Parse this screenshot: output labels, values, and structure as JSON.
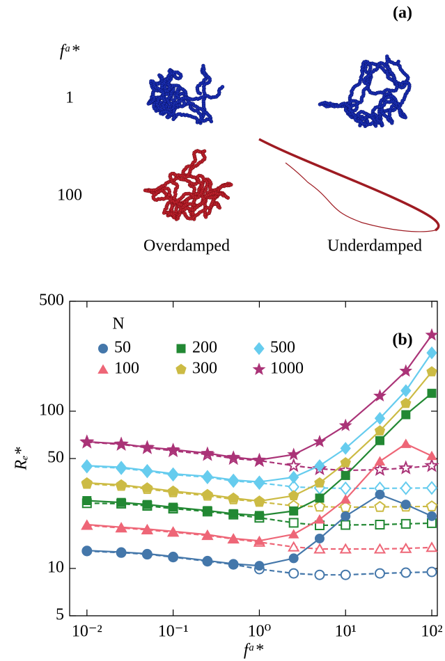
{
  "panel_a": {
    "label": "(a)",
    "row_header": "fᵃ*",
    "rows": [
      "1",
      "100"
    ],
    "columns": [
      "Overdamped",
      "Underdamped"
    ]
  },
  "chart_data": {
    "type": "line",
    "panel_label": "(b)",
    "xlabel": "fᵃ*",
    "ylabel": "Rₑ*",
    "xscale": "log",
    "yscale": "log",
    "x": [
      0.01,
      0.025,
      0.05,
      0.1,
      0.25,
      0.5,
      1,
      2.5,
      5,
      10,
      25,
      50,
      100
    ],
    "xlim": [
      0.0063,
      116
    ],
    "ylim": [
      5,
      500
    ],
    "xticks": [
      {
        "value": 0.01,
        "label": "10⁻²"
      },
      {
        "value": 0.1,
        "label": "10⁻¹"
      },
      {
        "value": 1,
        "label": "10⁰"
      },
      {
        "value": 10,
        "label": "10¹"
      },
      {
        "value": 100,
        "label": "10²"
      }
    ],
    "yticks": [
      5,
      10,
      50,
      100,
      500
    ],
    "legend_title": "N",
    "legend_loc": "upper left",
    "series": [
      {
        "name": "50",
        "color": "#4477aa",
        "marker": "circle",
        "values": [
          13,
          12.7,
          12.4,
          11.9,
          11.2,
          10.7,
          10.4,
          11.6,
          15.5,
          21.5,
          29.5,
          25.5,
          21.5
        ],
        "dashed_values": [
          12.9,
          12.6,
          12.3,
          11.8,
          11.1,
          10.6,
          9.9,
          9.3,
          9.1,
          9.1,
          9.3,
          9.4,
          9.5
        ]
      },
      {
        "name": "100",
        "color": "#ee6677",
        "marker": "triangle",
        "values": [
          19,
          18.3,
          17.8,
          17.2,
          16.4,
          15.5,
          15,
          16.5,
          20.5,
          27.5,
          48,
          62,
          52
        ],
        "dashed_values": [
          18.8,
          18.1,
          17.6,
          17,
          16.2,
          15.4,
          14.7,
          13.7,
          13.3,
          13.3,
          13.3,
          13.4,
          13.6
        ]
      },
      {
        "name": "200",
        "color": "#228833",
        "marker": "square",
        "values": [
          27,
          26.3,
          25.5,
          24.5,
          23.3,
          22.3,
          21.7,
          23.2,
          28,
          39,
          65,
          95,
          130
        ],
        "dashed_values": [
          26,
          25.8,
          25,
          24,
          23,
          22,
          21,
          19.5,
          18.8,
          18.9,
          19,
          19.2,
          19.4
        ]
      },
      {
        "name": "300",
        "color": "#ccbb44",
        "marker": "pentagon",
        "values": [
          35,
          34,
          32.5,
          31,
          29.5,
          28,
          26.8,
          29,
          35,
          47,
          75,
          112,
          178
        ],
        "dashed_values": [
          34.5,
          33.5,
          32,
          30.5,
          29,
          27.5,
          26.5,
          25,
          24.7,
          24.5,
          24.6,
          24.7,
          24.8
        ]
      },
      {
        "name": "500",
        "color": "#66ccee",
        "marker": "diamond",
        "values": [
          45,
          44,
          42,
          40,
          38.5,
          36.5,
          35.5,
          38,
          45,
          58,
          90,
          135,
          235
        ],
        "dashed_values": [
          44.5,
          43.5,
          41.5,
          39.5,
          38,
          36,
          35,
          33,
          32.5,
          32.3,
          32.3,
          32.4,
          32.5
        ]
      },
      {
        "name": "1000",
        "color": "#aa3377",
        "marker": "star",
        "values": [
          64,
          62,
          59,
          57,
          54,
          51,
          49,
          53,
          64,
          81,
          125,
          180,
          305
        ],
        "dashed_values": [
          63.5,
          61.5,
          58.5,
          56,
          53,
          50,
          48.5,
          45,
          43,
          42,
          42.5,
          43.5,
          45
        ]
      }
    ]
  }
}
